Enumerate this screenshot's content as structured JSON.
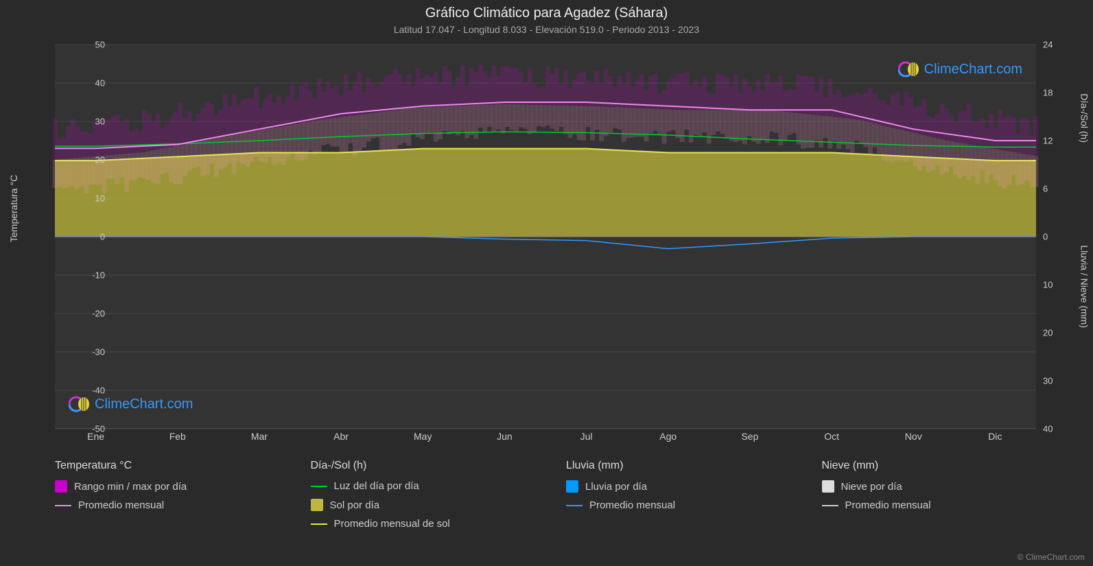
{
  "title": "Gráfico Climático para Agadez (Sáhara)",
  "subtitle": "Latitud 17.047 - Longitud 8.033 - Elevación 519.0 - Periodo 2013 - 2023",
  "chart": {
    "type": "climate-composite",
    "background_color": "#333333",
    "page_background_color": "#2a2a2a",
    "grid_color": "#444444",
    "text_color": "#cccccc",
    "title_fontsize": 20,
    "subtitle_fontsize": 14,
    "label_fontsize": 14,
    "tick_fontsize": 13,
    "x_axis": {
      "categories": [
        "Ene",
        "Feb",
        "Mar",
        "Abr",
        "May",
        "Jun",
        "Jul",
        "Ago",
        "Sep",
        "Oct",
        "Nov",
        "Dic"
      ]
    },
    "y_left": {
      "label": "Temperatura °C",
      "min": -50,
      "max": 50,
      "step": 10,
      "ticks": [
        50,
        40,
        30,
        20,
        10,
        0,
        -10,
        -20,
        -30,
        -40,
        -50
      ]
    },
    "y_right_top": {
      "label": "Día-/Sol (h)",
      "min": 0,
      "max": 24,
      "step": 6,
      "ticks": [
        24,
        18,
        12,
        6,
        0
      ]
    },
    "y_right_bottom": {
      "label": "Lluvia / Nieve (mm)",
      "min": 0,
      "max": 40,
      "step": 10,
      "ticks": [
        0,
        10,
        20,
        30,
        40
      ]
    },
    "series": {
      "temp_range_band": {
        "color_top": "#cc00cc",
        "color_bottom": "#ff99cc",
        "opacity": 0.6,
        "max": [
          28,
          30,
          35,
          39,
          42,
          42,
          41,
          40,
          40,
          38,
          33,
          29
        ],
        "min": [
          12,
          14,
          18,
          22,
          25,
          27,
          27,
          26,
          26,
          23,
          17,
          13
        ]
      },
      "temp_avg_line": {
        "color": "#ee88ee",
        "width": 2,
        "values": [
          23,
          24,
          28,
          32,
          34,
          35,
          35,
          34,
          33,
          33,
          28,
          25
        ]
      },
      "daylight_line": {
        "color": "#00cc33",
        "width": 1.5,
        "hours": [
          11.3,
          11.6,
          12.0,
          12.5,
          12.9,
          13.1,
          13.0,
          12.7,
          12.2,
          11.8,
          11.4,
          11.2
        ]
      },
      "sun_area": {
        "color": "#bdb83a",
        "line_color": "#e6e65a",
        "opacity": 0.75,
        "hours": [
          9.5,
          10,
          10.5,
          10.5,
          11,
          11,
          11,
          10.5,
          10.5,
          10.5,
          10,
          9.5
        ]
      },
      "rain_line": {
        "color": "#3399ff",
        "width": 1.5,
        "mm": [
          0,
          0,
          0,
          0,
          0,
          0.5,
          0.8,
          2.5,
          1.5,
          0.3,
          0,
          0
        ]
      },
      "rain_bars": {
        "color": "#0099ff",
        "opacity": 0.5
      },
      "snow_line": {
        "color": "#cccccc",
        "width": 1.5,
        "mm": [
          0,
          0,
          0,
          0,
          0,
          0,
          0,
          0,
          0,
          0,
          0,
          0
        ]
      }
    }
  },
  "legend": {
    "groups": [
      {
        "title": "Temperatura °C",
        "items": [
          {
            "type": "swatch",
            "color": "#cc00cc",
            "label": "Rango min / max por día"
          },
          {
            "type": "line",
            "color": "#ee88ee",
            "label": "Promedio mensual"
          }
        ]
      },
      {
        "title": "Día-/Sol (h)",
        "items": [
          {
            "type": "line",
            "color": "#00cc33",
            "label": "Luz del día por día"
          },
          {
            "type": "swatch",
            "color": "#bdb83a",
            "label": "Sol por día"
          },
          {
            "type": "line",
            "color": "#e6e65a",
            "label": "Promedio mensual de sol"
          }
        ]
      },
      {
        "title": "Lluvia (mm)",
        "items": [
          {
            "type": "swatch",
            "color": "#0099ff",
            "label": "Lluvia por día"
          },
          {
            "type": "line",
            "color": "#3399ff",
            "label": "Promedio mensual"
          }
        ]
      },
      {
        "title": "Nieve (mm)",
        "items": [
          {
            "type": "swatch",
            "color": "#dddddd",
            "label": "Nieve por día"
          },
          {
            "type": "line",
            "color": "#cccccc",
            "label": "Promedio mensual"
          }
        ]
      }
    ]
  },
  "branding": {
    "text": "ClimeChart.com",
    "color": "#3399ff",
    "copyright": "© ClimeChart.com"
  }
}
